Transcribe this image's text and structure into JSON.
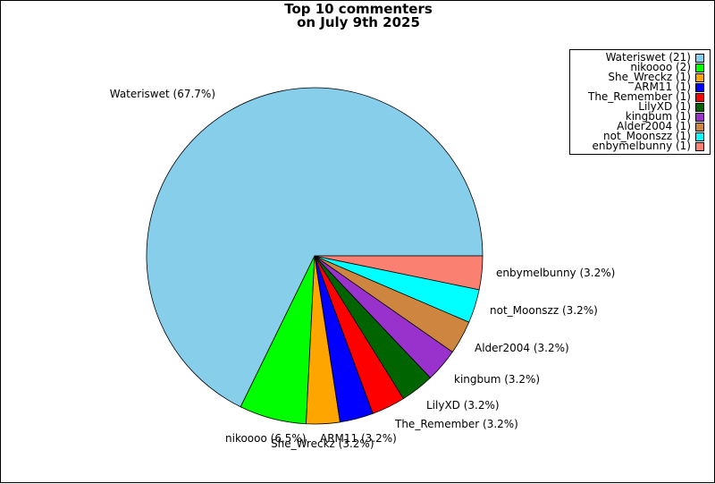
{
  "title_line1": "Top 10 commenters",
  "title_line2": "on July 9th 2025",
  "chart_data": {
    "type": "pie",
    "title": "Top 10 commenters on July 9th 2025",
    "legend_position": "top-right",
    "slices": [
      {
        "name": "Wateriswet",
        "count": 21,
        "percent": 67.7,
        "label": "Wateriswet (67.7%)",
        "legend": "Wateriswet (21)",
        "color": "#87ceeb"
      },
      {
        "name": "nikoooo",
        "count": 2,
        "percent": 6.5,
        "label": "nikoooo (6.5%)",
        "legend": "nikoooo (2)",
        "color": "#00ff00"
      },
      {
        "name": "She_Wreckz",
        "count": 1,
        "percent": 3.2,
        "label": "She_Wreckz (3.2%)",
        "legend": "She_Wreckz (1)",
        "color": "#ffa500"
      },
      {
        "name": "ARM11",
        "count": 1,
        "percent": 3.2,
        "label": "ARM11 (3.2%)",
        "legend": "ARM11 (1)",
        "color": "#0000ff"
      },
      {
        "name": "The_Remember",
        "count": 1,
        "percent": 3.2,
        "label": "The_Remember (3.2%)",
        "legend": "The_Remember (1)",
        "color": "#ff0000"
      },
      {
        "name": "LilyXD",
        "count": 1,
        "percent": 3.2,
        "label": "LilyXD (3.2%)",
        "legend": "LilyXD (1)",
        "color": "#006400"
      },
      {
        "name": "kingbum",
        "count": 1,
        "percent": 3.2,
        "label": "kingbum (3.2%)",
        "legend": "kingbum (1)",
        "color": "#9932cc"
      },
      {
        "name": "Alder2004",
        "count": 1,
        "percent": 3.2,
        "label": "Alder2004 (3.2%)",
        "legend": "Alder2004 (1)",
        "color": "#cd853f"
      },
      {
        "name": "not_Moonszz",
        "count": 1,
        "percent": 3.2,
        "label": "not_Moonszz (3.2%)",
        "legend": "not_Moonszz (1)",
        "color": "#00ffff"
      },
      {
        "name": "enbymelbunny",
        "count": 1,
        "percent": 3.2,
        "label": "enbymelbunny (3.2%)",
        "legend": "enbymelbunny (1)",
        "color": "#fa8072"
      }
    ]
  }
}
